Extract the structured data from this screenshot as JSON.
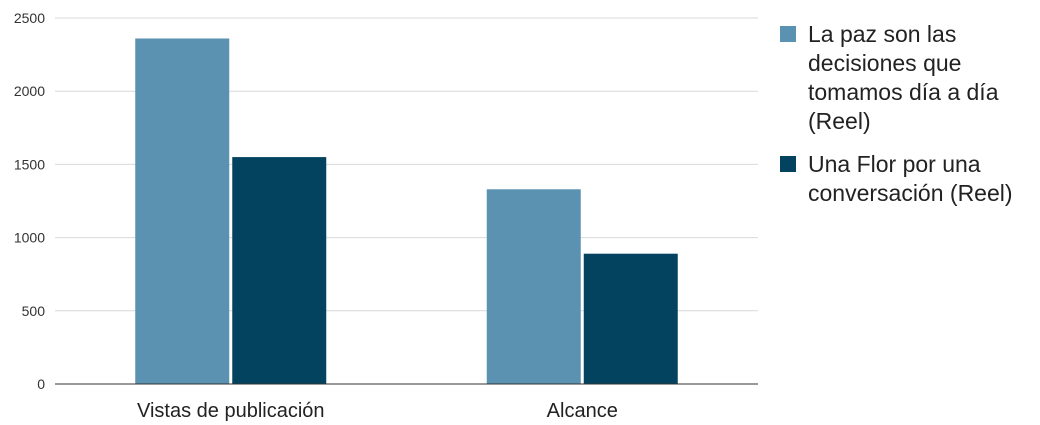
{
  "chart_data": {
    "type": "bar",
    "title": "",
    "xlabel": "",
    "ylabel": "",
    "categories": [
      "Vistas de publicación",
      "Alcance"
    ],
    "series": [
      {
        "name": "La paz son las decisiones que tomamos día a día (Reel)",
        "values": [
          2360,
          1330
        ],
        "color": "#5b92b2"
      },
      {
        "name": "Una Flor por una conversación (Reel)",
        "values": [
          1550,
          890
        ],
        "color": "#04435f"
      }
    ],
    "ylim": [
      0,
      2500
    ],
    "yticks": [
      0,
      500,
      1000,
      1500,
      2000,
      2500
    ],
    "grid": true,
    "legend_position": "right"
  }
}
